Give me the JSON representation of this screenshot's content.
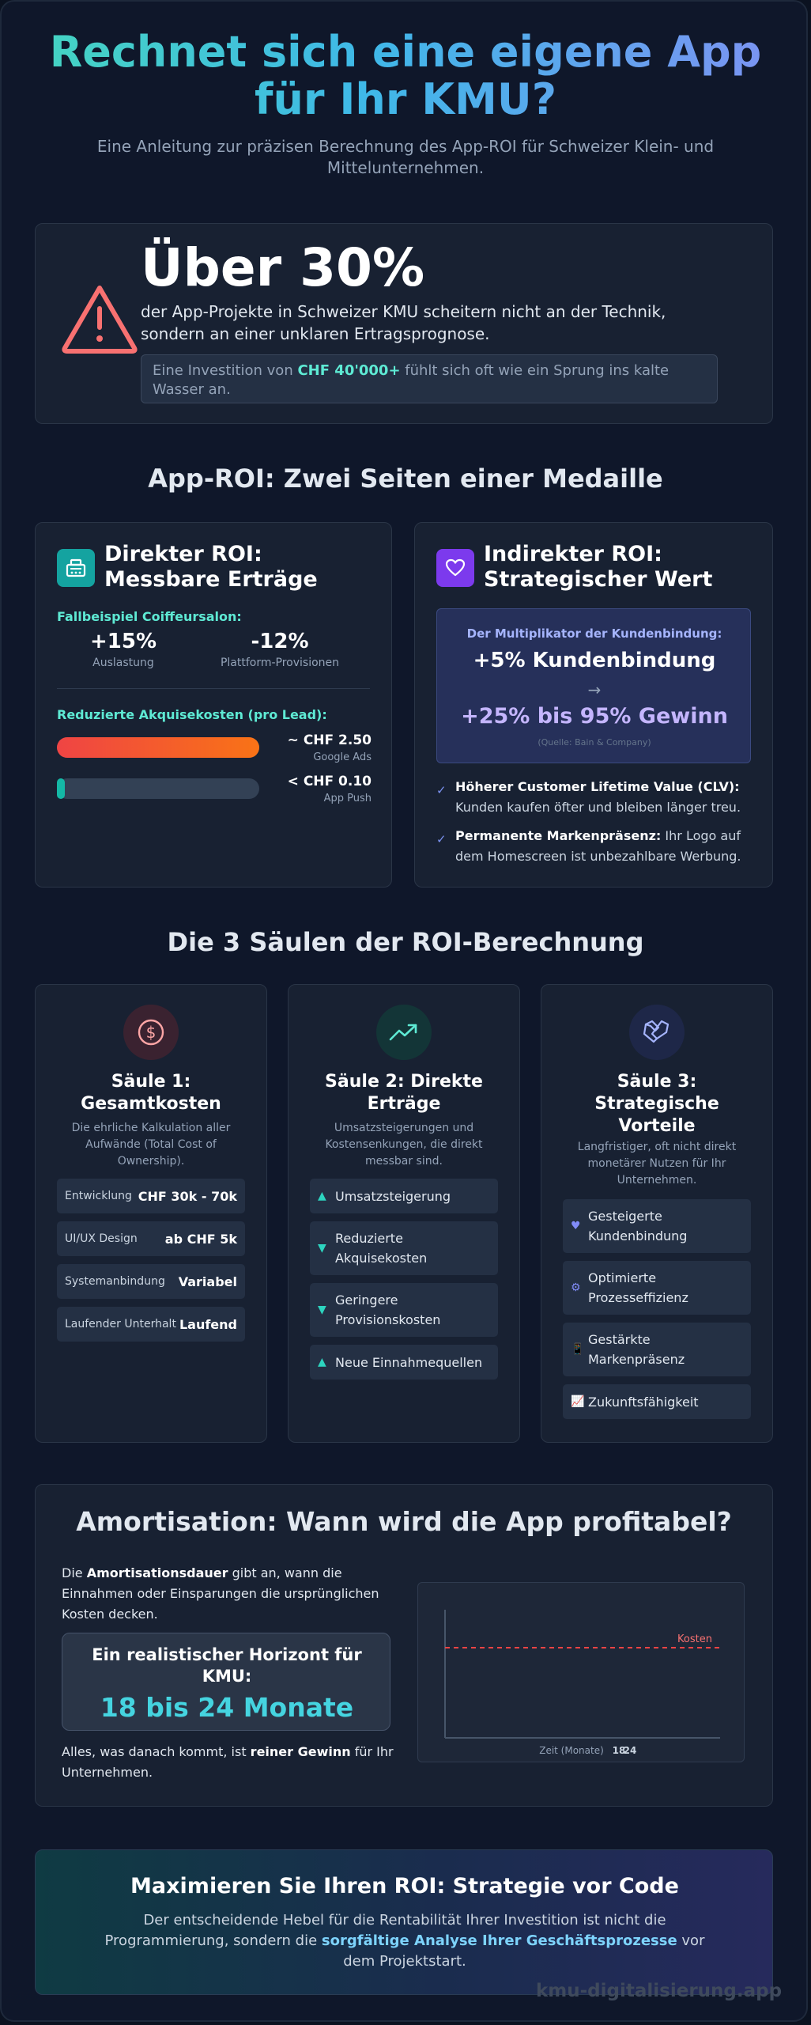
{
  "hero": {
    "title_line1": "Rechnet sich eine eigene App",
    "title_line2": "für Ihr KMU?",
    "subtitle": "Eine Anleitung zur präzisen Berechnung des App-ROI für Schweizer Klein- und Mittelunternehmen."
  },
  "alert": {
    "icon": "warning-triangle-icon",
    "big_number": "Über 30%",
    "text": "der App-Projekte in Schweizer KMU scheitern nicht an der Technik, sondern an einer unklaren Ertragsprognose.",
    "callout_pre": "Eine Investition von ",
    "callout_highlight": "CHF 40'000+",
    "callout_post": " fühlt sich oft wie ein Sprung ins kalte Wasser an."
  },
  "roi_section": {
    "heading": "App-ROI: Zwei Seiten einer Medaille",
    "direct": {
      "icon": "cash-register-icon",
      "title": "Direkter ROI: Messbare Erträge",
      "example_label": "Fallbeispiel Coiffeursalon:",
      "stats": [
        {
          "value": "+15%",
          "label": "Auslastung"
        },
        {
          "value": "-12%",
          "label": "Plattform-Provisionen"
        }
      ],
      "acq_label": "Reduzierte Akquisekosten (pro Lead):",
      "bars": [
        {
          "value": "~ CHF 2.50",
          "label": "Google Ads",
          "fill": 1.0,
          "color_from": "#ef4444",
          "color_to": "#f97316"
        },
        {
          "value": "< CHF 0.10",
          "label": "App Push",
          "fill": 0.04,
          "color_from": "#14b8a6",
          "color_to": "#14b8a6"
        }
      ]
    },
    "indirect": {
      "icon": "heart-icon",
      "title": "Indirekter ROI: Strategischer Wert",
      "multiplier_label": "Der Multiplikator der Kundenbindung:",
      "multiplier_top": "+5% Kundenbindung",
      "arrow": "→",
      "multiplier_bottom": "+25% bis 95% Gewinn",
      "source": "(Quelle: Bain & Company)",
      "bullets": [
        {
          "bold": "Höherer Customer Lifetime Value (CLV):",
          "text": " Kunden kaufen öfter und bleiben länger treu."
        },
        {
          "bold": "Permanente Markenpräsenz:",
          "text": " Ihr Logo auf dem Homescreen ist unbezahlbare Werbung."
        }
      ]
    }
  },
  "pillars": {
    "heading": "Die 3 Säulen der ROI-Berechnung",
    "p1": {
      "icon": "dollar-circle-icon",
      "title": "Säule 1: Gesamtkosten",
      "desc": "Die ehrliche Kalkulation aller Aufwände (Total Cost of Ownership).",
      "items": [
        {
          "label": "Entwicklung",
          "value": "CHF 30k - 70k"
        },
        {
          "label": "UI/UX Design",
          "value": "ab CHF 5k"
        },
        {
          "label": "Systemanbindung",
          "value": "Variabel"
        },
        {
          "label": "Laufender Unterhalt",
          "value": "Laufend"
        }
      ]
    },
    "p2": {
      "icon": "trending-up-icon",
      "title": "Säule 2: Direkte Erträge",
      "desc": "Umsatzsteigerungen und Kostensenkungen, die direkt messbar sind.",
      "items": [
        {
          "icon": "▲",
          "text": "Umsatzsteigerung"
        },
        {
          "icon": "▼",
          "text": "Reduzierte Akquisekosten"
        },
        {
          "icon": "▼",
          "text": "Geringere Provisionskosten"
        },
        {
          "icon": "▲",
          "text": "Neue Einnahmequellen"
        }
      ]
    },
    "p3": {
      "icon": "handshake-icon",
      "title": "Säule 3: Strategische Vorteile",
      "desc": "Langfristiger, oft nicht direkt monetärer Nutzen für Ihr Unternehmen.",
      "items": [
        {
          "icon": "♥",
          "text": "Gesteigerte Kundenbindung"
        },
        {
          "icon": "⚙",
          "text": "Optimierte Prozesseffizienz"
        },
        {
          "icon": "📱",
          "text": "Gestärkte Markenpräsenz"
        },
        {
          "icon": "📈",
          "text": "Zukunftsfähigkeit"
        }
      ]
    }
  },
  "amortisation": {
    "heading": "Amortisation: Wann wird die App profitabel?",
    "intro_pre": "Die ",
    "intro_bold": "Amortisationsdauer",
    "intro_post": " gibt an, wann die Einnahmen oder Einsparungen die ursprünglichen Kosten decken.",
    "horizon_label": "Ein realistischer Horizont für KMU:",
    "horizon_value": "18 bis 24 Monate",
    "outro_pre": "Alles, was danach kommt, ist ",
    "outro_bold": "reiner Gewinn",
    "outro_post": " für Ihr Unternehmen.",
    "chart": {
      "cost_label": "Kosten",
      "xlabel": "Zeit (Monate)",
      "tick_labels": [
        "18",
        "24"
      ]
    }
  },
  "cta": {
    "heading": "Maximieren Sie Ihren ROI: Strategie vor Code",
    "text_pre": "Der entscheidende Hebel für die Rentabilität Ihrer Investition ist nicht die Programmierung, sondern die ",
    "text_highlight": "sorgfältige Analyse Ihrer Geschäftsprozesse",
    "text_post": " vor dem Projektstart."
  },
  "watermark": "kmu-digitalisierung.app"
}
